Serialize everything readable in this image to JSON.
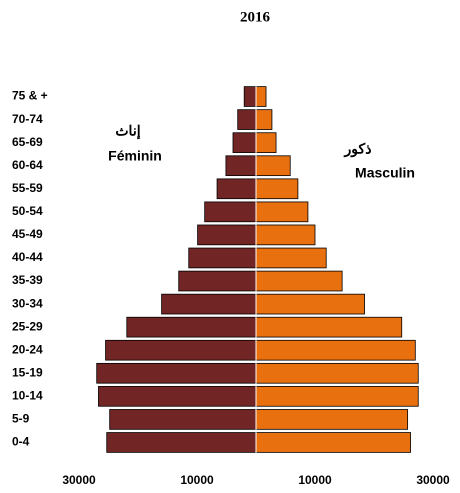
{
  "chart_data": {
    "type": "bar",
    "orientation": "horizontal",
    "title": "2016",
    "categories": [
      "0-4",
      "5-9",
      "10-14",
      "15-19",
      "20-24",
      "25-29",
      "30-34",
      "35-39",
      "40-44",
      "45-49",
      "50-54",
      "55-59",
      "60-64",
      "65-69",
      "70-74",
      "75 & +"
    ],
    "series": [
      {
        "name": "Féminin",
        "name_ar": "إناث",
        "color": "#722525",
        "values": [
          -25300,
          -24800,
          -26700,
          -27000,
          -25500,
          -21900,
          -16000,
          -13100,
          -11400,
          -9900,
          -8700,
          -6600,
          -5100,
          -3900,
          -3100,
          -2000
        ]
      },
      {
        "name": "Masculin",
        "name_ar": "ذكور",
        "color": "#e8700f",
        "values": [
          26200,
          25700,
          27500,
          27500,
          27000,
          24700,
          18400,
          14600,
          11900,
          10000,
          8800,
          7100,
          5800,
          3400,
          2700,
          1700
        ]
      }
    ],
    "xlim": [
      -30000,
      30000
    ],
    "xticks": [
      {
        "value": -30000,
        "label": "30000"
      },
      {
        "value": -10000,
        "label": "10000"
      },
      10000,
      30000
    ]
  }
}
